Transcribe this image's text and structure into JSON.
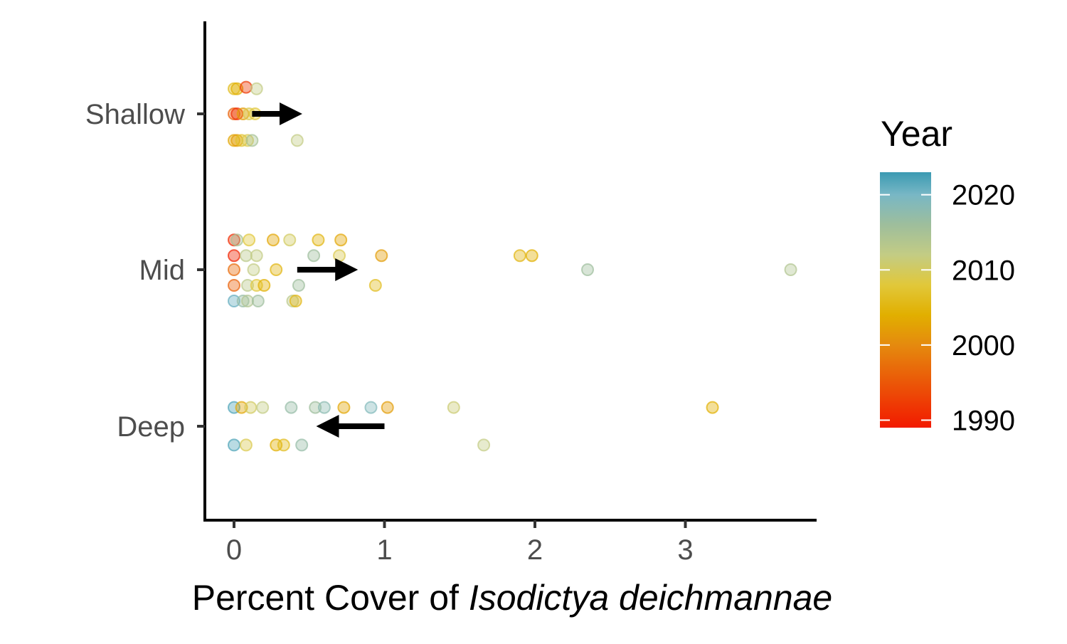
{
  "chart_data": {
    "type": "scatter",
    "xlabel": {
      "prefix": "Percent Cover of ",
      "species": "Isodictya deichmannae"
    },
    "ylabel": "",
    "xlim": [
      -0.2,
      3.85
    ],
    "x_ticks": [
      0,
      1,
      2,
      3
    ],
    "categories": [
      "Deep",
      "Mid",
      "Shallow"
    ],
    "legend": {
      "title": "Year",
      "position": "right",
      "range": [
        1989,
        2023
      ],
      "ticks": [
        1990,
        2000,
        2010,
        2020
      ],
      "gradient": [
        {
          "year": 1989,
          "color": "#F21A00"
        },
        {
          "year": 2000,
          "color": "#E58A0E"
        },
        {
          "year": 2004,
          "color": "#E1AF00"
        },
        {
          "year": 2008,
          "color": "#E1C83A"
        },
        {
          "year": 2012,
          "color": "#C3CC84"
        },
        {
          "year": 2016,
          "color": "#9EBE9C"
        },
        {
          "year": 2020,
          "color": "#78B7C5"
        },
        {
          "year": 2023,
          "color": "#3B9AB2"
        }
      ]
    },
    "point_opacity": 0.4,
    "arrows": [
      {
        "category": "Shallow",
        "from": 0.12,
        "to": 0.45
      },
      {
        "category": "Mid",
        "from": 0.42,
        "to": 0.82
      },
      {
        "category": "Deep",
        "from": 1.0,
        "to": 0.55
      }
    ],
    "points": [
      {
        "category": "Shallow",
        "x": 0.0,
        "jitter": 0.16,
        "year": 2006
      },
      {
        "category": "Shallow",
        "x": 0.02,
        "jitter": 0.16,
        "year": 2004
      },
      {
        "category": "Shallow",
        "x": 0.08,
        "jitter": 0.17,
        "year": 1992
      },
      {
        "category": "Shallow",
        "x": 0.15,
        "jitter": 0.16,
        "year": 2012
      },
      {
        "category": "Shallow",
        "x": 0.0,
        "jitter": 0.0,
        "year": 1996
      },
      {
        "category": "Shallow",
        "x": 0.02,
        "jitter": 0.0,
        "year": 1991
      },
      {
        "category": "Shallow",
        "x": 0.06,
        "jitter": 0.0,
        "year": 2002
      },
      {
        "category": "Shallow",
        "x": 0.1,
        "jitter": 0.0,
        "year": 2009
      },
      {
        "category": "Shallow",
        "x": 0.14,
        "jitter": 0.0,
        "year": 2008
      },
      {
        "category": "Shallow",
        "x": 0.0,
        "jitter": -0.17,
        "year": 2003
      },
      {
        "category": "Shallow",
        "x": 0.02,
        "jitter": -0.17,
        "year": 2002
      },
      {
        "category": "Shallow",
        "x": 0.05,
        "jitter": -0.17,
        "year": 2007
      },
      {
        "category": "Shallow",
        "x": 0.09,
        "jitter": -0.17,
        "year": 2009
      },
      {
        "category": "Shallow",
        "x": 0.12,
        "jitter": -0.17,
        "year": 2015
      },
      {
        "category": "Shallow",
        "x": 0.42,
        "jitter": -0.17,
        "year": 2012
      },
      {
        "category": "Mid",
        "x": 0.0,
        "jitter": 0.19,
        "year": 1991
      },
      {
        "category": "Mid",
        "x": 0.02,
        "jitter": 0.19,
        "year": 2015
      },
      {
        "category": "Mid",
        "x": 0.1,
        "jitter": 0.19,
        "year": 2008
      },
      {
        "category": "Mid",
        "x": 0.26,
        "jitter": 0.19,
        "year": 2003
      },
      {
        "category": "Mid",
        "x": 0.37,
        "jitter": 0.19,
        "year": 2010
      },
      {
        "category": "Mid",
        "x": 0.56,
        "jitter": 0.19,
        "year": 2005
      },
      {
        "category": "Mid",
        "x": 0.71,
        "jitter": 0.19,
        "year": 2003
      },
      {
        "category": "Mid",
        "x": 0.0,
        "jitter": 0.09,
        "year": 1990
      },
      {
        "category": "Mid",
        "x": 0.08,
        "jitter": 0.09,
        "year": 2013
      },
      {
        "category": "Mid",
        "x": 0.15,
        "jitter": 0.09,
        "year": 2012
      },
      {
        "category": "Mid",
        "x": 0.53,
        "jitter": 0.09,
        "year": 2016
      },
      {
        "category": "Mid",
        "x": 0.7,
        "jitter": 0.09,
        "year": 2009
      },
      {
        "category": "Mid",
        "x": 0.98,
        "jitter": 0.09,
        "year": 2002
      },
      {
        "category": "Mid",
        "x": 1.9,
        "jitter": 0.09,
        "year": 2005
      },
      {
        "category": "Mid",
        "x": 1.98,
        "jitter": 0.09,
        "year": 2004
      },
      {
        "category": "Mid",
        "x": 0.0,
        "jitter": 0.0,
        "year": 1997
      },
      {
        "category": "Mid",
        "x": 0.13,
        "jitter": 0.0,
        "year": 2012
      },
      {
        "category": "Mid",
        "x": 0.28,
        "jitter": 0.0,
        "year": 2005
      },
      {
        "category": "Mid",
        "x": 2.35,
        "jitter": 0.0,
        "year": 2016
      },
      {
        "category": "Mid",
        "x": 3.7,
        "jitter": 0.0,
        "year": 2014
      },
      {
        "category": "Mid",
        "x": 0.0,
        "jitter": -0.1,
        "year": 1996
      },
      {
        "category": "Mid",
        "x": 0.09,
        "jitter": -0.1,
        "year": 2013
      },
      {
        "category": "Mid",
        "x": 0.15,
        "jitter": -0.1,
        "year": 2008
      },
      {
        "category": "Mid",
        "x": 0.2,
        "jitter": -0.1,
        "year": 2004
      },
      {
        "category": "Mid",
        "x": 0.43,
        "jitter": -0.1,
        "year": 2016
      },
      {
        "category": "Mid",
        "x": 0.94,
        "jitter": -0.1,
        "year": 2006
      },
      {
        "category": "Mid",
        "x": 0.0,
        "jitter": -0.2,
        "year": 2021
      },
      {
        "category": "Mid",
        "x": 0.06,
        "jitter": -0.2,
        "year": 2017
      },
      {
        "category": "Mid",
        "x": 0.09,
        "jitter": -0.2,
        "year": 2014
      },
      {
        "category": "Mid",
        "x": 0.16,
        "jitter": -0.2,
        "year": 2016
      },
      {
        "category": "Mid",
        "x": 0.39,
        "jitter": -0.2,
        "year": 2013
      },
      {
        "category": "Mid",
        "x": 0.41,
        "jitter": -0.2,
        "year": 2005
      },
      {
        "category": "Deep",
        "x": 0.0,
        "jitter": 0.12,
        "year": 2022
      },
      {
        "category": "Deep",
        "x": 0.05,
        "jitter": 0.12,
        "year": 2003
      },
      {
        "category": "Deep",
        "x": 0.11,
        "jitter": 0.12,
        "year": 2010
      },
      {
        "category": "Deep",
        "x": 0.19,
        "jitter": 0.12,
        "year": 2012
      },
      {
        "category": "Deep",
        "x": 0.38,
        "jitter": 0.12,
        "year": 2017
      },
      {
        "category": "Deep",
        "x": 0.54,
        "jitter": 0.12,
        "year": 2016
      },
      {
        "category": "Deep",
        "x": 0.6,
        "jitter": 0.12,
        "year": 2018
      },
      {
        "category": "Deep",
        "x": 0.73,
        "jitter": 0.12,
        "year": 2003
      },
      {
        "category": "Deep",
        "x": 0.91,
        "jitter": 0.12,
        "year": 2019
      },
      {
        "category": "Deep",
        "x": 1.02,
        "jitter": 0.12,
        "year": 2002
      },
      {
        "category": "Deep",
        "x": 1.46,
        "jitter": 0.12,
        "year": 2011
      },
      {
        "category": "Deep",
        "x": 3.18,
        "jitter": 0.12,
        "year": 2004
      },
      {
        "category": "Deep",
        "x": 0.0,
        "jitter": -0.12,
        "year": 2022
      },
      {
        "category": "Deep",
        "x": 0.08,
        "jitter": -0.12,
        "year": 2009
      },
      {
        "category": "Deep",
        "x": 0.28,
        "jitter": -0.12,
        "year": 2004
      },
      {
        "category": "Deep",
        "x": 0.33,
        "jitter": -0.12,
        "year": 2006
      },
      {
        "category": "Deep",
        "x": 0.45,
        "jitter": -0.12,
        "year": 2017
      },
      {
        "category": "Deep",
        "x": 1.66,
        "jitter": -0.12,
        "year": 2012
      }
    ]
  }
}
